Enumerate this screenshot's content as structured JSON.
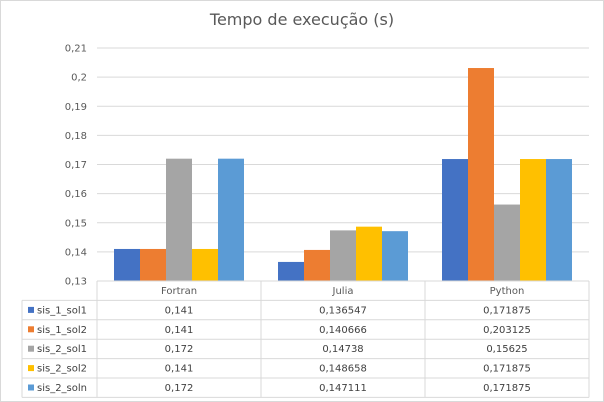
{
  "chart_data": {
    "type": "bar",
    "title": "Tempo de execução (s)",
    "categories": [
      "Fortran",
      "Julia",
      "Python"
    ],
    "series": [
      {
        "name": "sis_1_sol1",
        "color": "#4472c4",
        "values": [
          0.141,
          0.136547,
          0.171875
        ],
        "labels": [
          "0,141",
          "0,136547",
          "0,171875"
        ]
      },
      {
        "name": "sis_1_sol2",
        "color": "#ed7d31",
        "values": [
          0.141,
          0.140666,
          0.203125
        ],
        "labels": [
          "0,141",
          "0,140666",
          "0,203125"
        ]
      },
      {
        "name": "sis_2_sol1",
        "color": "#a5a5a5",
        "values": [
          0.172,
          0.14738,
          0.15625
        ],
        "labels": [
          "0,172",
          "0,14738",
          "0,15625"
        ]
      },
      {
        "name": "sis_2_sol2",
        "color": "#ffc000",
        "values": [
          0.141,
          0.148658,
          0.171875
        ],
        "labels": [
          "0,141",
          "0,148658",
          "0,171875"
        ]
      },
      {
        "name": "sis_2_soln",
        "color": "#5b9bd5",
        "values": [
          0.172,
          0.147111,
          0.171875
        ],
        "labels": [
          "0,172",
          "0,147111",
          "0,171875"
        ]
      }
    ],
    "ylim": [
      0.13,
      0.21
    ],
    "yticks": [
      0.13,
      0.14,
      0.15,
      0.16,
      0.17,
      0.18,
      0.19,
      0.2,
      0.21
    ],
    "ytick_labels": [
      "0,13",
      "0,14",
      "0,15",
      "0,16",
      "0,17",
      "0,18",
      "0,19",
      "0,2",
      "0,21"
    ],
    "grid": true,
    "legend": "data table below chart"
  }
}
